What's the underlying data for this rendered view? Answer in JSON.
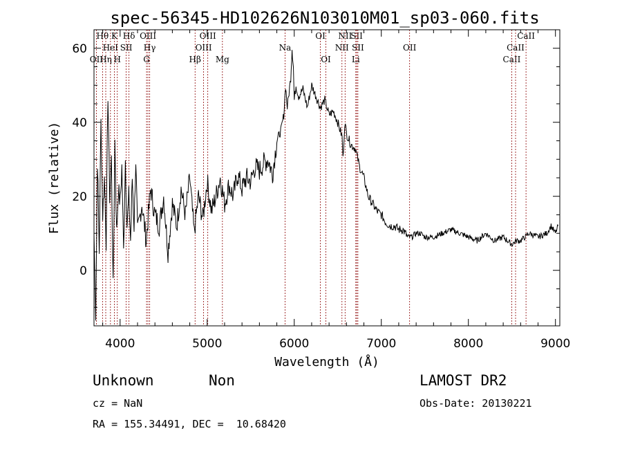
{
  "chart_data": {
    "type": "line",
    "title": "spec-56345-HD102626N103010M01_sp03-060.fits",
    "xlabel": "Wavelength (Å)",
    "ylabel": "Flux (relative)",
    "xlim": [
      3700,
      9050
    ],
    "ylim": [
      -15,
      65
    ],
    "xticks": [
      4000,
      5000,
      6000,
      7000,
      8000,
      9000
    ],
    "yticks": [
      0,
      20,
      40,
      60
    ],
    "series": [
      {
        "x": [
          3700,
          3720,
          3740,
          3760,
          3780,
          3800,
          3820,
          3840,
          3860,
          3880,
          3900,
          3920,
          3940,
          3960,
          3980,
          4000,
          4020,
          4040,
          4060,
          4080,
          4100,
          4120,
          4140,
          4160,
          4180,
          4200,
          4250,
          4300,
          4350,
          4400,
          4450,
          4500,
          4550,
          4600,
          4650,
          4700,
          4750,
          4800,
          4850,
          4900,
          4950,
          5000,
          5050,
          5100,
          5150,
          5200,
          5250,
          5300,
          5350,
          5400,
          5450,
          5500,
          5550,
          5600,
          5650,
          5700,
          5750,
          5800,
          5850,
          5880,
          5900,
          5920,
          5940,
          5960,
          5975,
          5990,
          6000,
          6020,
          6050,
          6100,
          6150,
          6200,
          6250,
          6300,
          6350,
          6400,
          6450,
          6500,
          6550,
          6560,
          6580,
          6600,
          6650,
          6700,
          6750,
          6800,
          6850,
          6900,
          6950,
          7000,
          7050,
          7100,
          7150,
          7200,
          7250,
          7300,
          7350,
          7400,
          7450,
          7500,
          7600,
          7700,
          7800,
          7900,
          8000,
          8100,
          8200,
          8300,
          8400,
          8500,
          8550,
          8600,
          8650,
          8700,
          8800,
          8900,
          8950,
          9000,
          9030
        ],
        "y": [
          10,
          -12,
          30,
          5,
          40,
          15,
          25,
          8,
          48,
          20,
          30,
          -5,
          35,
          10,
          22,
          18,
          28,
          5,
          30,
          12,
          20,
          8,
          25,
          12,
          30,
          10,
          18,
          8,
          22,
          15,
          12,
          20,
          5,
          18,
          12,
          22,
          15,
          25,
          10,
          20,
          14,
          24,
          16,
          20,
          25,
          18,
          23,
          20,
          26,
          22,
          25,
          24,
          28,
          27,
          29,
          30,
          26,
          35,
          38,
          42,
          50,
          44,
          48,
          52,
          60,
          55,
          46,
          50,
          47,
          49,
          44,
          50,
          47,
          44,
          46,
          42,
          43,
          40,
          36,
          30,
          40,
          37,
          34,
          33,
          28,
          25,
          20,
          18,
          16,
          15,
          13,
          12,
          12,
          11,
          11,
          9,
          9,
          10,
          10,
          9,
          9,
          10,
          11,
          10,
          9,
          8,
          10,
          8,
          9,
          7,
          8,
          8,
          9,
          10,
          9,
          10,
          12,
          10,
          12
        ]
      }
    ],
    "spectral_lines": [
      {
        "name": "OII",
        "x": 3727,
        "row": 3
      },
      {
        "name": "Hθ",
        "x": 3798,
        "row": 1
      },
      {
        "name": "Hη",
        "x": 3835,
        "row": 3
      },
      {
        "name": "HeI",
        "x": 3889,
        "row": 2
      },
      {
        "name": "K",
        "x": 3934,
        "row": 1
      },
      {
        "name": "SII",
        "x": 4070,
        "row": 2
      },
      {
        "name": "H",
        "x": 3968,
        "row": 3
      },
      {
        "name": "Hδ",
        "x": 4102,
        "row": 1
      },
      {
        "name": "OIII",
        "x": 4320,
        "row": 1
      },
      {
        "name": "Hγ",
        "x": 4340,
        "row": 2
      },
      {
        "name": "G",
        "x": 4304,
        "row": 3
      },
      {
        "name": "Hβ",
        "x": 4861,
        "row": 3
      },
      {
        "name": "OIII",
        "x": 4959,
        "row": 2
      },
      {
        "name": "OIII",
        "x": 5007,
        "row": 1
      },
      {
        "name": "Mg",
        "x": 5175,
        "row": 3
      },
      {
        "name": "Na",
        "x": 5894,
        "row": 2
      },
      {
        "name": "OI",
        "x": 6300,
        "row": 1
      },
      {
        "name": "OI",
        "x": 6363,
        "row": 3
      },
      {
        "name": "NII",
        "x": 6548,
        "row": 2
      },
      {
        "name": "NII",
        "x": 6584,
        "row": 1
      },
      {
        "name": "SII",
        "x": 6717,
        "row": 1
      },
      {
        "name": "SII",
        "x": 6731,
        "row": 2
      },
      {
        "name": "Li",
        "x": 6707,
        "row": 3
      },
      {
        "name": "OII",
        "x": 7325,
        "row": 2
      },
      {
        "name": "CaII",
        "x": 8498,
        "row": 3
      },
      {
        "name": "CaII",
        "x": 8542,
        "row": 2
      },
      {
        "name": "CaII",
        "x": 8662,
        "row": 1
      }
    ],
    "line_color": "#000000",
    "marker_color": "#8b0000"
  },
  "info": {
    "class": "Unknown",
    "subclass": "Non",
    "survey": "LAMOST DR2",
    "cz": "cz = NaN",
    "obs_date": "Obs-Date: 20130221",
    "coords": "RA = 155.34491, DEC =  10.68420"
  }
}
